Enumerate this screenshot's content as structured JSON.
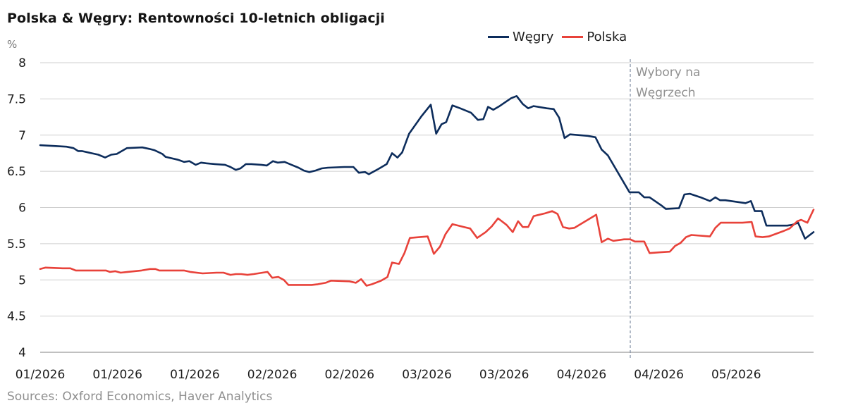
{
  "colors": {
    "wegry": "#0d2d5c",
    "polska": "#e8423a",
    "grid": "#cfcfcf",
    "event": "#7f8ea3"
  },
  "chart_data": {
    "type": "line",
    "title": "Polska & Węgry: Rentowności 10-letnich obligacji",
    "ylabel": "%",
    "ylim": [
      4,
      8
    ],
    "yticks": [
      "4",
      "4.5",
      "5",
      "5.5",
      "6",
      "6.5",
      "7",
      "7.5",
      "8"
    ],
    "xtick_labels": [
      "01/2026",
      "01/2026",
      "01/2026",
      "02/2026",
      "02/2026",
      "03/2026",
      "03/2026",
      "04/2026",
      "04/2026",
      "05/2026"
    ],
    "x_range": [
      0,
      100
    ],
    "grid": true,
    "legend_position": "top-right",
    "source": "Sources: Oxford Economics, Haver Analytics",
    "event": {
      "x": 76.3,
      "label_lines": [
        "Wybory na",
        "Węgrzech"
      ]
    },
    "series": [
      {
        "name": "Węgry",
        "color": "#0d2d5c",
        "points": [
          [
            0,
            6.86
          ],
          [
            1.8,
            6.85
          ],
          [
            3.4,
            6.84
          ],
          [
            4.3,
            6.82
          ],
          [
            4.9,
            6.78
          ],
          [
            5.4,
            6.78
          ],
          [
            7.5,
            6.73
          ],
          [
            8.4,
            6.69
          ],
          [
            9.2,
            6.73
          ],
          [
            9.9,
            6.74
          ],
          [
            11.2,
            6.82
          ],
          [
            13.2,
            6.83
          ],
          [
            14.1,
            6.81
          ],
          [
            14.8,
            6.79
          ],
          [
            15.8,
            6.74
          ],
          [
            16.2,
            6.7
          ],
          [
            17.8,
            6.66
          ],
          [
            18.6,
            6.63
          ],
          [
            19.3,
            6.64
          ],
          [
            20.1,
            6.59
          ],
          [
            20.8,
            6.62
          ],
          [
            21.5,
            6.61
          ],
          [
            22.6,
            6.6
          ],
          [
            23.9,
            6.59
          ],
          [
            24.6,
            6.56
          ],
          [
            25.3,
            6.52
          ],
          [
            25.9,
            6.54
          ],
          [
            26.6,
            6.6
          ],
          [
            27.3,
            6.6
          ],
          [
            28.6,
            6.59
          ],
          [
            29.3,
            6.58
          ],
          [
            30.1,
            6.64
          ],
          [
            30.7,
            6.62
          ],
          [
            31.6,
            6.63
          ],
          [
            32.5,
            6.59
          ],
          [
            33.4,
            6.55
          ],
          [
            34.1,
            6.51
          ],
          [
            34.8,
            6.49
          ],
          [
            35.6,
            6.51
          ],
          [
            36.4,
            6.54
          ],
          [
            37.2,
            6.55
          ],
          [
            39.3,
            6.56
          ],
          [
            40.5,
            6.56
          ],
          [
            41.2,
            6.48
          ],
          [
            42.0,
            6.49
          ],
          [
            42.5,
            6.46
          ],
          [
            43.7,
            6.53
          ],
          [
            44.8,
            6.6
          ],
          [
            45.5,
            6.75
          ],
          [
            46.2,
            6.69
          ],
          [
            46.8,
            6.76
          ],
          [
            47.7,
            7.02
          ],
          [
            49.3,
            7.26
          ],
          [
            50.5,
            7.42
          ],
          [
            51.2,
            7.02
          ],
          [
            51.9,
            7.15
          ],
          [
            52.5,
            7.18
          ],
          [
            53.3,
            7.41
          ],
          [
            54.3,
            7.37
          ],
          [
            55.7,
            7.31
          ],
          [
            56.6,
            7.21
          ],
          [
            57.3,
            7.22
          ],
          [
            57.9,
            7.39
          ],
          [
            58.6,
            7.35
          ],
          [
            59.4,
            7.4
          ],
          [
            60.9,
            7.51
          ],
          [
            61.6,
            7.54
          ],
          [
            62.4,
            7.43
          ],
          [
            63.1,
            7.37
          ],
          [
            63.8,
            7.4
          ],
          [
            65.5,
            7.37
          ],
          [
            66.4,
            7.36
          ],
          [
            67.1,
            7.24
          ],
          [
            67.8,
            6.96
          ],
          [
            68.5,
            7.01
          ],
          [
            70.8,
            6.99
          ],
          [
            71.8,
            6.97
          ],
          [
            72.6,
            6.8
          ],
          [
            73.4,
            6.72
          ],
          [
            76.2,
            6.21
          ],
          [
            77.4,
            6.21
          ],
          [
            78.1,
            6.14
          ],
          [
            78.8,
            6.14
          ],
          [
            80.3,
            6.03
          ],
          [
            80.9,
            5.98
          ],
          [
            82.6,
            5.99
          ],
          [
            83.3,
            6.18
          ],
          [
            84.0,
            6.19
          ],
          [
            85.4,
            6.14
          ],
          [
            86.6,
            6.09
          ],
          [
            87.3,
            6.14
          ],
          [
            87.9,
            6.1
          ],
          [
            88.6,
            6.1
          ],
          [
            91.2,
            6.06
          ],
          [
            91.9,
            6.09
          ],
          [
            92.4,
            5.95
          ],
          [
            93.3,
            5.95
          ],
          [
            93.9,
            5.75
          ],
          [
            95.4,
            5.75
          ],
          [
            96.6,
            5.75
          ],
          [
            97.2,
            5.76
          ],
          [
            98.0,
            5.79
          ],
          [
            98.9,
            5.57
          ],
          [
            100,
            5.66
          ]
        ]
      },
      {
        "name": "Polska",
        "color": "#e8423a",
        "points": [
          [
            0,
            5.15
          ],
          [
            0.7,
            5.17
          ],
          [
            2.9,
            5.16
          ],
          [
            3.9,
            5.16
          ],
          [
            4.6,
            5.13
          ],
          [
            6.5,
            5.13
          ],
          [
            8.5,
            5.13
          ],
          [
            9.0,
            5.11
          ],
          [
            9.7,
            5.12
          ],
          [
            10.4,
            5.1
          ],
          [
            11.3,
            5.11
          ],
          [
            13.1,
            5.13
          ],
          [
            14.2,
            5.15
          ],
          [
            14.9,
            5.15
          ],
          [
            15.4,
            5.13
          ],
          [
            17.7,
            5.13
          ],
          [
            18.6,
            5.13
          ],
          [
            19.4,
            5.11
          ],
          [
            21.0,
            5.09
          ],
          [
            22.8,
            5.1
          ],
          [
            23.7,
            5.1
          ],
          [
            24.6,
            5.07
          ],
          [
            25.3,
            5.08
          ],
          [
            26.0,
            5.08
          ],
          [
            26.8,
            5.07
          ],
          [
            27.6,
            5.08
          ],
          [
            29.4,
            5.11
          ],
          [
            30.0,
            5.03
          ],
          [
            30.8,
            5.04
          ],
          [
            31.5,
            5.0
          ],
          [
            32.1,
            4.93
          ],
          [
            34.3,
            4.93
          ],
          [
            35.1,
            4.93
          ],
          [
            35.9,
            4.94
          ],
          [
            36.9,
            4.96
          ],
          [
            37.6,
            4.99
          ],
          [
            40.0,
            4.98
          ],
          [
            40.8,
            4.96
          ],
          [
            41.5,
            5.01
          ],
          [
            42.2,
            4.92
          ],
          [
            42.9,
            4.94
          ],
          [
            44.1,
            4.99
          ],
          [
            44.9,
            5.04
          ],
          [
            45.5,
            5.24
          ],
          [
            46.4,
            5.22
          ],
          [
            47.1,
            5.37
          ],
          [
            47.8,
            5.58
          ],
          [
            50.1,
            5.6
          ],
          [
            50.9,
            5.36
          ],
          [
            51.7,
            5.46
          ],
          [
            52.4,
            5.63
          ],
          [
            53.3,
            5.77
          ],
          [
            54.8,
            5.73
          ],
          [
            55.6,
            5.71
          ],
          [
            56.5,
            5.58
          ],
          [
            57.6,
            5.66
          ],
          [
            58.4,
            5.74
          ],
          [
            59.2,
            5.85
          ],
          [
            60.3,
            5.76
          ],
          [
            61.1,
            5.66
          ],
          [
            61.8,
            5.81
          ],
          [
            62.4,
            5.73
          ],
          [
            63.1,
            5.73
          ],
          [
            63.8,
            5.88
          ],
          [
            65.3,
            5.92
          ],
          [
            66.2,
            5.95
          ],
          [
            66.9,
            5.91
          ],
          [
            67.6,
            5.73
          ],
          [
            68.4,
            5.71
          ],
          [
            69.1,
            5.72
          ],
          [
            71.9,
            5.9
          ],
          [
            72.6,
            5.52
          ],
          [
            73.4,
            5.57
          ],
          [
            74.1,
            5.54
          ],
          [
            75.5,
            5.56
          ],
          [
            76.3,
            5.56
          ],
          [
            76.9,
            5.53
          ],
          [
            78.1,
            5.53
          ],
          [
            78.8,
            5.37
          ],
          [
            80.0,
            5.38
          ],
          [
            81.4,
            5.39
          ],
          [
            82.1,
            5.47
          ],
          [
            82.8,
            5.51
          ],
          [
            83.5,
            5.59
          ],
          [
            84.2,
            5.62
          ],
          [
            86.6,
            5.6
          ],
          [
            87.3,
            5.72
          ],
          [
            88.0,
            5.79
          ],
          [
            90.8,
            5.79
          ],
          [
            92.0,
            5.8
          ],
          [
            92.5,
            5.6
          ],
          [
            93.4,
            5.59
          ],
          [
            94.2,
            5.6
          ],
          [
            96.0,
            5.67
          ],
          [
            96.9,
            5.71
          ],
          [
            97.9,
            5.81
          ],
          [
            98.4,
            5.83
          ],
          [
            99.2,
            5.79
          ],
          [
            100,
            5.97
          ]
        ]
      }
    ]
  }
}
